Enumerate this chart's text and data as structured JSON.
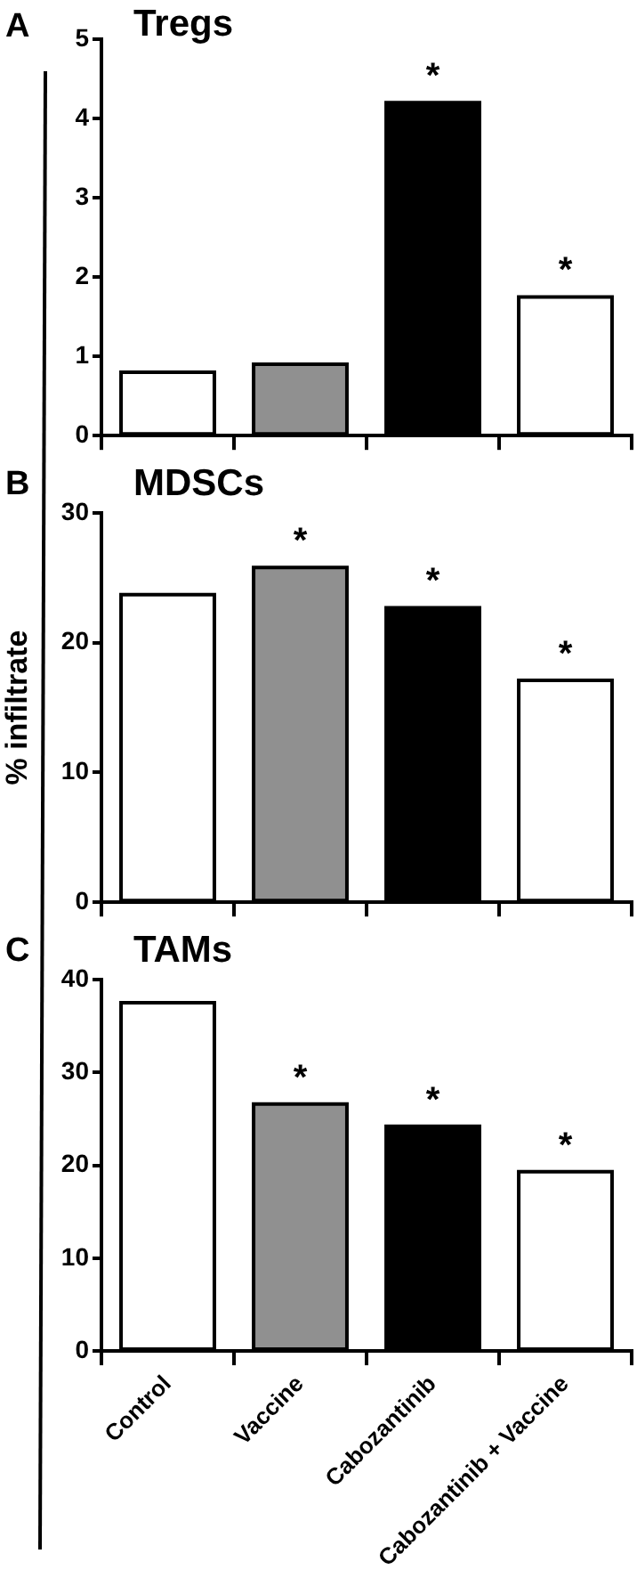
{
  "chart_data": [
    {
      "type": "bar",
      "title": "Tregs",
      "categories": [
        "Control",
        "Vaccine",
        "Cabozantinib",
        "Cabozantinib + Vaccine"
      ],
      "values": [
        0.8,
        0.9,
        4.2,
        1.75
      ],
      "colors": [
        "#ffffff",
        "#909090",
        "#000000",
        "#ffffff"
      ],
      "ylim": [
        0,
        5
      ],
      "yticks": [
        0,
        1,
        2,
        3,
        4,
        5
      ],
      "tick_labels": "y",
      "annotations": [
        "A",
        {
          "text": "*",
          "x": "Cabozantinib",
          "y": 4.2
        },
        {
          "text": "*",
          "x": "Cabozantinib + Vaccine",
          "y": 1.75
        }
      ]
    },
    {
      "type": "bar",
      "title": "MDSCs",
      "ylabel": "% infiltrate",
      "categories": [
        "Control",
        "Vaccine",
        "Cabozantinib",
        "Cabozantinib + Vaccine"
      ],
      "values": [
        23.7,
        25.8,
        22.7,
        17.1
      ],
      "colors": [
        "#ffffff",
        "#909090",
        "#000000",
        "#ffffff"
      ],
      "ylim": [
        0,
        30
      ],
      "yticks": [
        0,
        10,
        20,
        30
      ],
      "tick_labels": "y",
      "annotations": [
        "B",
        {
          "text": "*",
          "x": "Vaccine",
          "y": 25.8
        },
        {
          "text": "*",
          "x": "Cabozantinib",
          "y": 22.7
        },
        {
          "text": "*",
          "x": "Cabozantinib + Vaccine",
          "y": 17.1
        }
      ]
    },
    {
      "type": "bar",
      "title": "TAMs",
      "categories": [
        "Control",
        "Vaccine",
        "Cabozantinib",
        "Cabozantinib + Vaccine"
      ],
      "values": [
        37.5,
        26.6,
        24.2,
        19.3
      ],
      "colors": [
        "#ffffff",
        "#909090",
        "#000000",
        "#ffffff"
      ],
      "ylim": [
        0,
        40
      ],
      "yticks": [
        0,
        10,
        20,
        30,
        40
      ],
      "annotations": [
        "C",
        {
          "text": "*",
          "x": "Vaccine",
          "y": 26.6
        },
        {
          "text": "*",
          "x": "Cabozantinib",
          "y": 24.2
        },
        {
          "text": "*",
          "x": "Cabozantinib + Vaccine",
          "y": 19.3
        }
      ]
    }
  ]
}
